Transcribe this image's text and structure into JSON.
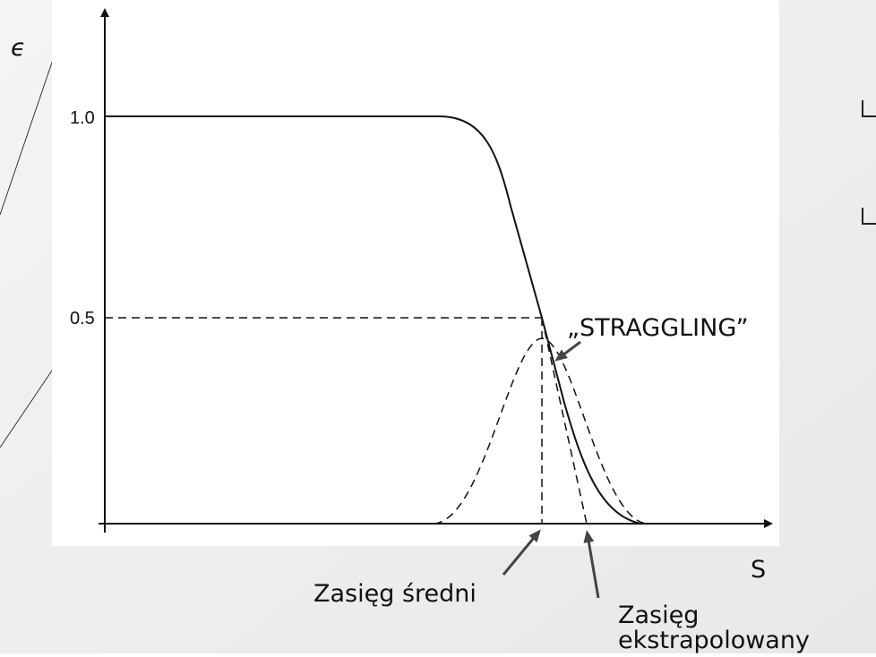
{
  "axis_label_y": "ϵ",
  "tick_labels": [
    "1.0",
    "0.5"
  ],
  "annotations": {
    "straggling": "„STRAGGLING”",
    "mean_range": "Zasięg średni",
    "axis_label_x": "S",
    "extrapolated_range": [
      "Zasięg",
      "ekstrapolowany"
    ]
  }
}
